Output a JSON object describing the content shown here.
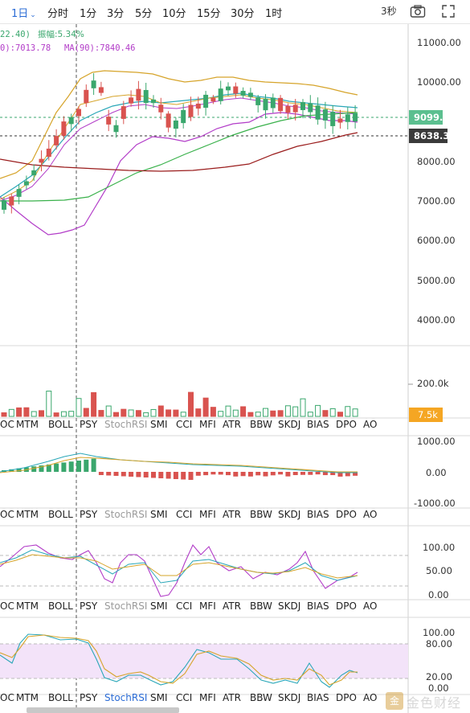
{
  "toolbar": {
    "period_selected": "1日",
    "periods": [
      "分时",
      "1分",
      "3分",
      "5分",
      "10分",
      "15分",
      "30分",
      "1时"
    ],
    "refresh": "3秒",
    "icons": [
      "camera-icon",
      "expand-icon"
    ]
  },
  "main_panel": {
    "header_left": "22.40)",
    "amplitude_label": "振幅:5.34%",
    "ma_left": "0):7013.78",
    "ma90": "MA(90):7840.46",
    "price_ticks": [
      "11000.00",
      "10000.00",
      "9000.00",
      "8000.00",
      "7000.00",
      "6000.00",
      "5000.00",
      "4000.00"
    ],
    "current_price": "9099.99",
    "ref_price": "8638.32"
  },
  "volume_panel": {
    "ticks": [
      "200.0k"
    ],
    "current_label": "7.5k"
  },
  "indicator_tabs": [
    "OC",
    "MTM",
    "BOLL",
    "PSY",
    "StochRSI",
    "SMI",
    "CCI",
    "MFI",
    "ATR",
    "BBW",
    "SKDJ",
    "BIAS",
    "DPO",
    "AO"
  ],
  "macd_panel": {
    "ticks": [
      "1000.00",
      "0.00",
      "-1000.00"
    ]
  },
  "kdj_panel": {
    "ticks": [
      "100.00",
      "50.00",
      "0.00"
    ]
  },
  "stochrsi_panel": {
    "ticks": [
      "100.00",
      "80.00",
      "20.00",
      "0.00"
    ]
  },
  "watermark": {
    "text": "金色财经",
    "logo": "金"
  },
  "colors": {
    "up": "#3aa76d",
    "down": "#d9534f",
    "ma_gold": "#d6a42a",
    "ma_purple": "#b23cc8",
    "ma_teal": "#2aa7b8",
    "ma_green": "#39b14b",
    "ma_darkred": "#9a1c1c",
    "price_tag": "#5bbf8f",
    "vol_tag": "#f5a623",
    "stoch_fill": "#f3e3f9"
  }
}
